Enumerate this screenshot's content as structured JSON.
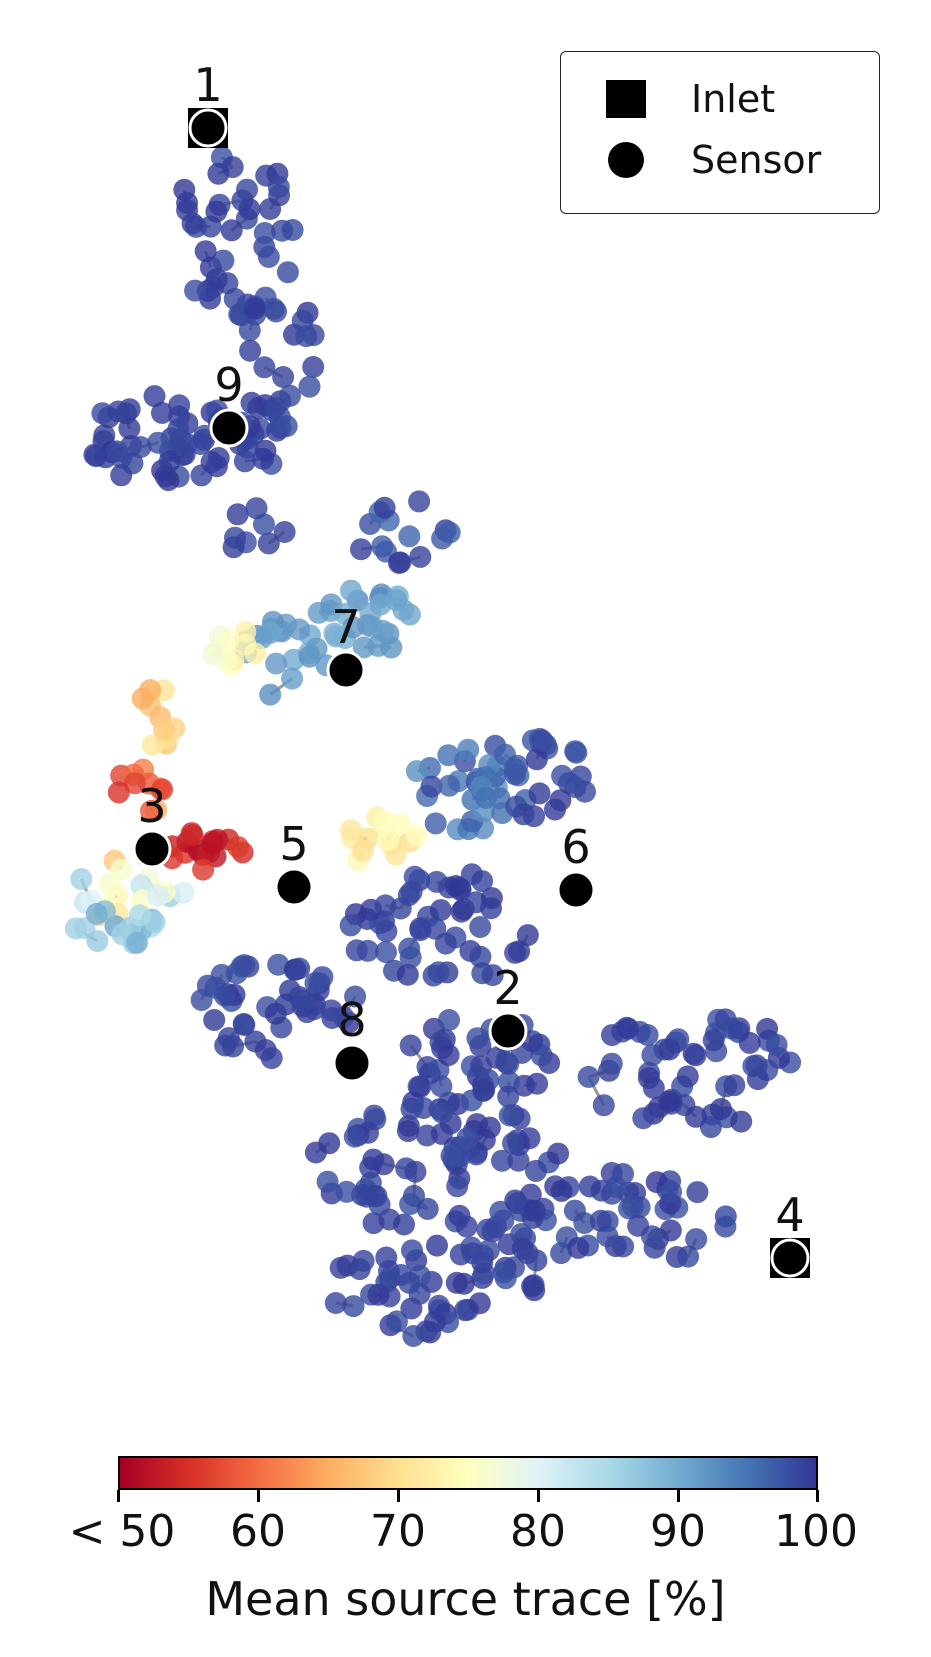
{
  "colorbar": {
    "label": "Mean source trace [%]",
    "ticks": [
      "< 50",
      "60",
      "70",
      "80",
      "90",
      "100"
    ],
    "range": [
      50,
      100
    ],
    "colormap": [
      "#a50026",
      "#d73027",
      "#f46d43",
      "#fdae61",
      "#fee090",
      "#ffffbf",
      "#e0f3f8",
      "#abd9e9",
      "#74add1",
      "#4575b4",
      "#313695"
    ]
  },
  "legend": {
    "inlet_label": "Inlet",
    "sensor_label": "Sensor"
  },
  "markers": [
    {
      "label": "1",
      "type": "inlet"
    },
    {
      "label": "9",
      "type": "sensor"
    },
    {
      "label": "7",
      "type": "sensor"
    },
    {
      "label": "3",
      "type": "sensor"
    },
    {
      "label": "5",
      "type": "sensor"
    },
    {
      "label": "6",
      "type": "sensor"
    },
    {
      "label": "2",
      "type": "sensor"
    },
    {
      "label": "8",
      "type": "sensor"
    },
    {
      "label": "4",
      "type": "inlet"
    }
  ],
  "colors": {
    "pipe": "#9a9a9a",
    "marker": "#000000",
    "marker_outline": "#ffffff"
  }
}
